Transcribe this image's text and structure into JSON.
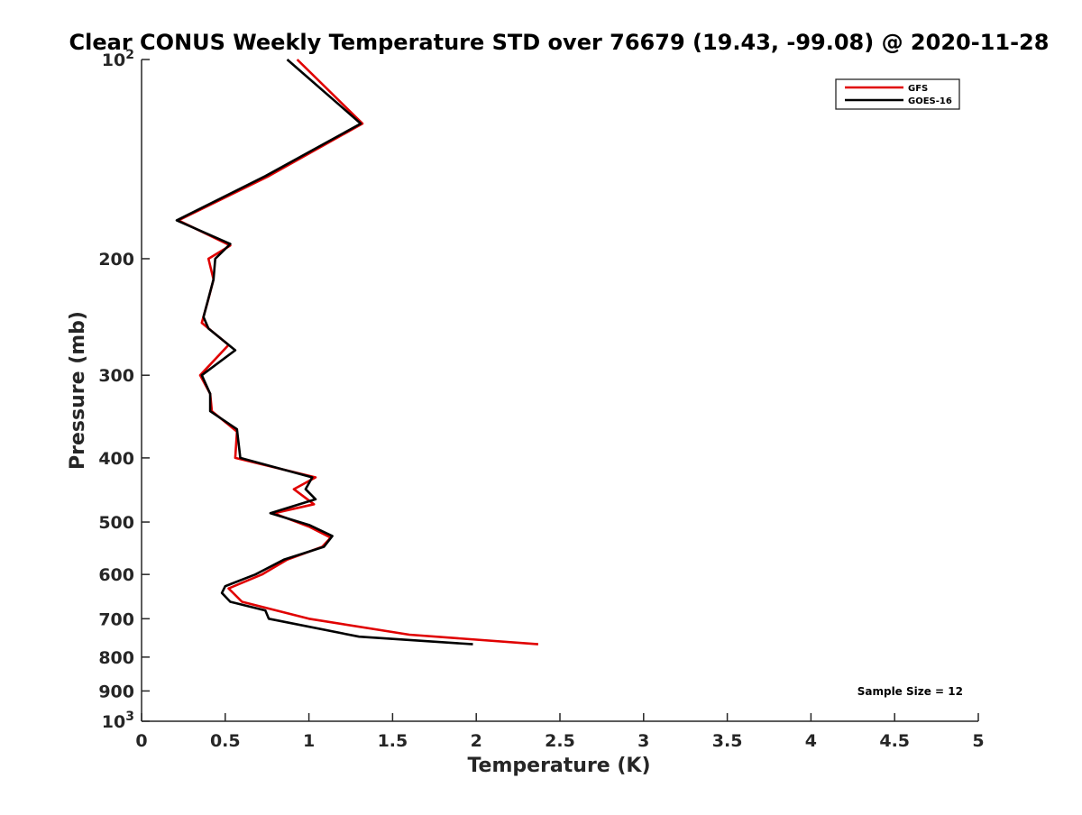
{
  "chart_data": {
    "type": "line",
    "title": "Clear CONUS Weekly Temperature STD over 76679 (19.43, -99.08) @ 2020-11-28",
    "xlabel": "Temperature (K)",
    "ylabel": "Pressure (mb)",
    "xlim": [
      0,
      5
    ],
    "ylim": [
      100,
      1000
    ],
    "y_scale": "log",
    "y_reversed": true,
    "grid": false,
    "legend_position": "top-right",
    "x_ticks": [
      {
        "value": 0,
        "label": "0"
      },
      {
        "value": 0.5,
        "label": "0.5"
      },
      {
        "value": 1,
        "label": "1"
      },
      {
        "value": 1.5,
        "label": "1.5"
      },
      {
        "value": 2,
        "label": "2"
      },
      {
        "value": 2.5,
        "label": "2.5"
      },
      {
        "value": 3,
        "label": "3"
      },
      {
        "value": 3.5,
        "label": "3.5"
      },
      {
        "value": 4,
        "label": "4"
      },
      {
        "value": 4.5,
        "label": "4.5"
      },
      {
        "value": 5,
        "label": "5"
      }
    ],
    "y_ticks": [
      {
        "value": 100,
        "label": "10",
        "sup": "2"
      },
      {
        "value": 200,
        "label": "200",
        "sup": ""
      },
      {
        "value": 300,
        "label": "300",
        "sup": ""
      },
      {
        "value": 400,
        "label": "400",
        "sup": ""
      },
      {
        "value": 500,
        "label": "500",
        "sup": ""
      },
      {
        "value": 600,
        "label": "600",
        "sup": ""
      },
      {
        "value": 700,
        "label": "700",
        "sup": ""
      },
      {
        "value": 800,
        "label": "800",
        "sup": ""
      },
      {
        "value": 900,
        "label": "900",
        "sup": ""
      },
      {
        "value": 1000,
        "label": "10",
        "sup": "3"
      }
    ],
    "annotation": "Sample Size = 12",
    "series": [
      {
        "name": "GFS",
        "color": "#e00000",
        "points": [
          {
            "x": 0.93,
            "y": 100
          },
          {
            "x": 1.32,
            "y": 125
          },
          {
            "x": 0.76,
            "y": 150
          },
          {
            "x": 0.22,
            "y": 175
          },
          {
            "x": 0.53,
            "y": 191
          },
          {
            "x": 0.4,
            "y": 200
          },
          {
            "x": 0.43,
            "y": 215
          },
          {
            "x": 0.4,
            "y": 230
          },
          {
            "x": 0.36,
            "y": 250
          },
          {
            "x": 0.52,
            "y": 270
          },
          {
            "x": 0.35,
            "y": 300
          },
          {
            "x": 0.41,
            "y": 320
          },
          {
            "x": 0.42,
            "y": 340
          },
          {
            "x": 0.57,
            "y": 365
          },
          {
            "x": 0.56,
            "y": 400
          },
          {
            "x": 1.04,
            "y": 428
          },
          {
            "x": 0.91,
            "y": 446
          },
          {
            "x": 1.03,
            "y": 470
          },
          {
            "x": 0.79,
            "y": 485
          },
          {
            "x": 1.0,
            "y": 508
          },
          {
            "x": 1.13,
            "y": 528
          },
          {
            "x": 1.08,
            "y": 545
          },
          {
            "x": 0.87,
            "y": 570
          },
          {
            "x": 0.72,
            "y": 600
          },
          {
            "x": 0.52,
            "y": 630
          },
          {
            "x": 0.6,
            "y": 660
          },
          {
            "x": 1.0,
            "y": 700
          },
          {
            "x": 1.6,
            "y": 740
          },
          {
            "x": 2.37,
            "y": 765
          }
        ]
      },
      {
        "name": "GOES-16",
        "color": "#000000",
        "points": [
          {
            "x": 0.87,
            "y": 100
          },
          {
            "x": 1.31,
            "y": 125
          },
          {
            "x": 0.74,
            "y": 150
          },
          {
            "x": 0.21,
            "y": 175
          },
          {
            "x": 0.53,
            "y": 190
          },
          {
            "x": 0.44,
            "y": 200
          },
          {
            "x": 0.43,
            "y": 215
          },
          {
            "x": 0.37,
            "y": 245
          },
          {
            "x": 0.4,
            "y": 255
          },
          {
            "x": 0.56,
            "y": 275
          },
          {
            "x": 0.36,
            "y": 300
          },
          {
            "x": 0.41,
            "y": 320
          },
          {
            "x": 0.41,
            "y": 340
          },
          {
            "x": 0.57,
            "y": 362
          },
          {
            "x": 0.59,
            "y": 400
          },
          {
            "x": 1.02,
            "y": 428
          },
          {
            "x": 0.98,
            "y": 446
          },
          {
            "x": 1.04,
            "y": 462
          },
          {
            "x": 0.77,
            "y": 485
          },
          {
            "x": 1.0,
            "y": 505
          },
          {
            "x": 1.14,
            "y": 525
          },
          {
            "x": 1.09,
            "y": 545
          },
          {
            "x": 0.85,
            "y": 570
          },
          {
            "x": 0.68,
            "y": 600
          },
          {
            "x": 0.5,
            "y": 625
          },
          {
            "x": 0.48,
            "y": 640
          },
          {
            "x": 0.53,
            "y": 660
          },
          {
            "x": 0.74,
            "y": 680
          },
          {
            "x": 0.76,
            "y": 700
          },
          {
            "x": 1.3,
            "y": 745
          },
          {
            "x": 1.98,
            "y": 765
          }
        ]
      }
    ]
  }
}
